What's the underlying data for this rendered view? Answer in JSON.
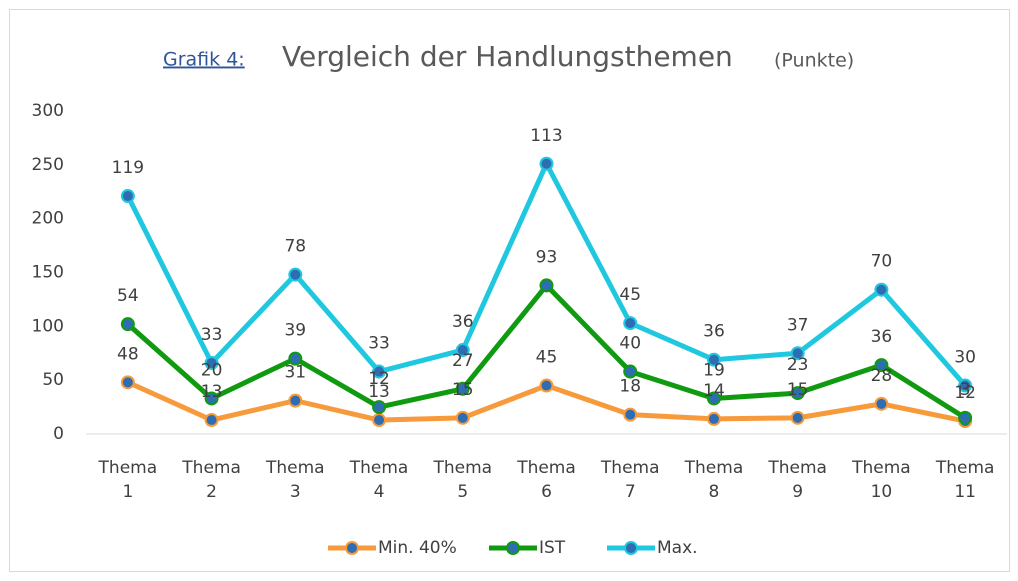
{
  "chart_data": {
    "type": "stacked_line",
    "title_label": "Grafik 4:",
    "title": "Vergleich der Handlungsthemen",
    "title_unit": "(Punkte)",
    "categories": [
      "Thema 1",
      "Thema 2",
      "Thema 3",
      "Thema 4",
      "Thema 5",
      "Thema 6",
      "Thema 7",
      "Thema 8",
      "Thema 9",
      "Thema 10",
      "Thema 11"
    ],
    "series": [
      {
        "name": "Min. 40%",
        "color": "#f79a3c",
        "values": [
          48,
          13,
          31,
          13,
          15,
          45,
          18,
          14,
          15,
          28,
          12
        ]
      },
      {
        "name": "IST",
        "color": "#109a10",
        "values": [
          54,
          20,
          39,
          12,
          27,
          93,
          40,
          19,
          23,
          36,
          3
        ]
      },
      {
        "name": "Max.",
        "color": "#1fc8df",
        "values": [
          119,
          33,
          78,
          33,
          36,
          113,
          45,
          36,
          37,
          70,
          30
        ]
      }
    ],
    "marker_color": "#2f6db3",
    "ylim": [
      0,
      300
    ],
    "yticks": [
      0,
      50,
      100,
      150,
      200,
      250,
      300
    ],
    "grid": false,
    "legend": "bottom"
  }
}
